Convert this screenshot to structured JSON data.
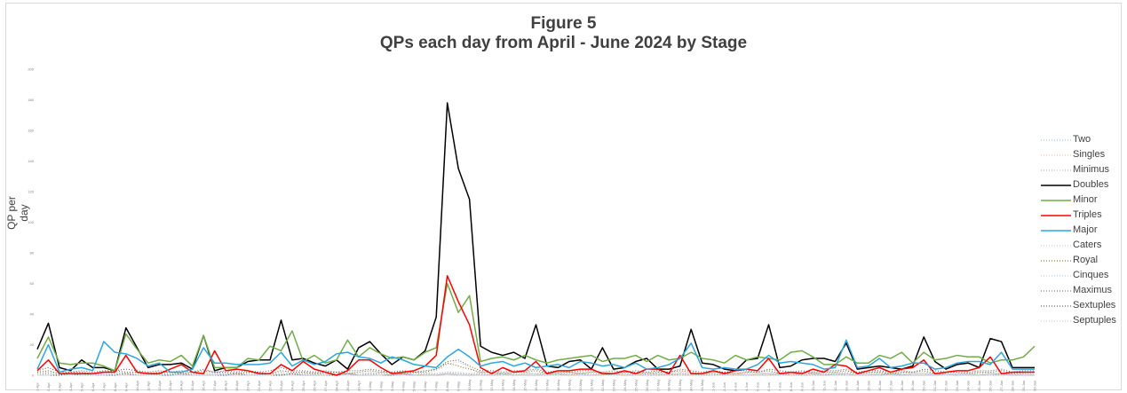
{
  "figure": {
    "title_line1": "Figure 5",
    "title_line2": "QPs each day from April - June 2024 by Stage"
  },
  "chart_data": {
    "type": "line",
    "title": "Figure 5 QPs each day from April - June 2024 by Stage",
    "xlabel": "",
    "ylabel": "QP per day",
    "ylim": [
      0,
      200
    ],
    "y_ticks": [
      0,
      20,
      40,
      60,
      80,
      100,
      120,
      140,
      160,
      180,
      200
    ],
    "grid": false,
    "legend_position": "right",
    "categories": [
      "1-Apr",
      "2-Apr",
      "3-Apr",
      "4-Apr",
      "5-Apr",
      "6-Apr",
      "7-Apr",
      "8-Apr",
      "9-Apr",
      "10-Apr",
      "11-Apr",
      "12-Apr",
      "13-Apr",
      "14-Apr",
      "15-Apr",
      "16-Apr",
      "17-Apr",
      "18-Apr",
      "19-Apr",
      "20-Apr",
      "21-Apr",
      "22-Apr",
      "23-Apr",
      "24-Apr",
      "25-Apr",
      "26-Apr",
      "27-Apr",
      "28-Apr",
      "29-Apr",
      "30-Apr",
      "1-May",
      "2-May",
      "3-May",
      "4-May",
      "5-May",
      "6-May",
      "7-May",
      "8-May",
      "9-May",
      "10-May",
      "11-May",
      "12-May",
      "13-May",
      "14-May",
      "15-May",
      "16-May",
      "17-May",
      "18-May",
      "19-May",
      "20-May",
      "21-May",
      "22-May",
      "23-May",
      "24-May",
      "25-May",
      "26-May",
      "27-May",
      "28-May",
      "29-May",
      "30-May",
      "31-May",
      "1-Jun",
      "2-Jun",
      "3-Jun",
      "4-Jun",
      "5-Jun",
      "6-Jun",
      "7-Jun",
      "8-Jun",
      "9-Jun",
      "10-Jun",
      "11-Jun",
      "12-Jun",
      "13-Jun",
      "14-Jun",
      "15-Jun",
      "16-Jun",
      "17-Jun",
      "18-Jun",
      "19-Jun",
      "20-Jun",
      "21-Jun",
      "22-Jun",
      "23-Jun",
      "24-Jun",
      "25-Jun",
      "26-Jun",
      "27-Jun",
      "28-Jun",
      "29-Jun",
      "30-Jun"
    ],
    "series": [
      {
        "name": "Two",
        "color": "#8ab4e0",
        "dash": "1,2",
        "width": 1,
        "values": [
          1,
          1,
          0,
          1,
          0,
          1,
          0,
          1,
          1,
          0,
          1,
          0,
          1,
          0,
          1,
          0,
          1,
          1,
          0,
          1,
          0,
          1,
          0,
          1,
          1,
          0,
          1,
          0,
          1,
          0,
          1,
          1,
          0,
          1,
          0,
          1,
          0,
          1,
          1,
          0,
          1,
          0,
          1,
          0,
          1,
          1,
          0,
          1,
          0,
          1,
          0,
          1,
          1,
          0,
          1,
          0,
          1,
          0,
          1,
          1,
          0,
          1,
          0,
          1,
          0,
          1,
          1,
          0,
          1,
          0,
          1,
          0,
          1,
          1,
          0,
          1,
          0,
          1,
          0,
          1,
          1,
          0,
          1,
          0,
          1,
          0,
          1,
          1,
          0,
          1,
          0
        ]
      },
      {
        "name": "Singles",
        "color": "#f4b183",
        "dash": "1,2",
        "width": 1,
        "values": [
          0,
          1,
          0,
          0,
          1,
          0,
          0,
          1,
          0,
          0,
          1,
          0,
          0,
          1,
          0,
          0,
          1,
          0,
          0,
          1,
          0,
          0,
          1,
          0,
          0,
          1,
          0,
          0,
          1,
          0,
          0,
          1,
          0,
          0,
          1,
          0,
          0,
          1,
          0,
          0,
          1,
          0,
          0,
          1,
          0,
          0,
          1,
          0,
          0,
          1,
          0,
          0,
          1,
          0,
          0,
          1,
          0,
          0,
          1,
          0,
          0,
          1,
          0,
          0,
          1,
          0,
          0,
          1,
          0,
          0,
          1,
          0,
          0,
          1,
          0,
          0,
          1,
          0,
          0,
          1,
          0,
          0,
          1,
          0,
          0,
          1,
          0,
          0,
          1,
          0,
          0
        ]
      },
      {
        "name": "Minimus",
        "color": "#a6a6a6",
        "dash": "1,2",
        "width": 1,
        "values": [
          1,
          2,
          1,
          1,
          2,
          1,
          1,
          2,
          1,
          1,
          2,
          1,
          1,
          2,
          1,
          1,
          2,
          1,
          1,
          2,
          1,
          1,
          2,
          1,
          1,
          2,
          1,
          1,
          2,
          1,
          1,
          2,
          1,
          1,
          2,
          1,
          1,
          2,
          1,
          1,
          2,
          1,
          1,
          2,
          1,
          1,
          2,
          1,
          1,
          2,
          1,
          1,
          2,
          1,
          1,
          2,
          1,
          1,
          2,
          1,
          1,
          2,
          1,
          1,
          2,
          1,
          1,
          2,
          1,
          1,
          2,
          1,
          1,
          2,
          1,
          1,
          2,
          1,
          1,
          2,
          1,
          1,
          2,
          1,
          1,
          2,
          1,
          1,
          2,
          1,
          1
        ]
      },
      {
        "name": "Doubles",
        "color": "#000000",
        "dash": "",
        "width": 1.5,
        "values": [
          17,
          34,
          5,
          3,
          10,
          5,
          5,
          3,
          31,
          18,
          5,
          7,
          7,
          8,
          4,
          26,
          3,
          5,
          5,
          9,
          10,
          10,
          36,
          10,
          11,
          8,
          6,
          10,
          4,
          18,
          22,
          14,
          7,
          12,
          10,
          16,
          38,
          178,
          135,
          115,
          19,
          15,
          13,
          15,
          11,
          33,
          6,
          5,
          9,
          10,
          4,
          18,
          4,
          5,
          9,
          11,
          4,
          4,
          6,
          30,
          8,
          7,
          4,
          3,
          10,
          11,
          33,
          5,
          6,
          10,
          11,
          11,
          9,
          21,
          4,
          5,
          6,
          5,
          4,
          6,
          25,
          9,
          4,
          7,
          8,
          5,
          24,
          22,
          5,
          5,
          5
        ]
      },
      {
        "name": "Minor",
        "color": "#70ad47",
        "dash": "",
        "width": 1.5,
        "values": [
          11,
          25,
          8,
          7,
          8,
          8,
          6,
          3,
          27,
          17,
          8,
          10,
          9,
          13,
          6,
          26,
          5,
          5,
          5,
          11,
          10,
          19,
          16,
          29,
          9,
          13,
          8,
          10,
          23,
          12,
          18,
          14,
          11,
          12,
          10,
          15,
          18,
          60,
          41,
          52,
          9,
          11,
          12,
          10,
          13,
          10,
          8,
          10,
          11,
          12,
          13,
          9,
          11,
          11,
          13,
          9,
          13,
          10,
          11,
          15,
          11,
          10,
          8,
          13,
          10,
          12,
          11,
          10,
          15,
          16,
          12,
          7,
          7,
          12,
          8,
          8,
          13,
          11,
          15,
          8,
          15,
          10,
          11,
          13,
          12,
          12,
          8,
          10,
          10,
          12,
          19
        ]
      },
      {
        "name": "Triples",
        "color": "#ff0000",
        "dash": "",
        "width": 1.5,
        "values": [
          3,
          10,
          1,
          1,
          1,
          1,
          2,
          2,
          13,
          2,
          1,
          1,
          4,
          7,
          2,
          1,
          16,
          3,
          4,
          3,
          1,
          1,
          7,
          3,
          9,
          4,
          2,
          0,
          3,
          10,
          10,
          5,
          1,
          2,
          3,
          6,
          13,
          65,
          48,
          33,
          5,
          1,
          5,
          2,
          3,
          9,
          1,
          3,
          3,
          4,
          4,
          1,
          1,
          3,
          1,
          4,
          4,
          1,
          13,
          1,
          1,
          3,
          1,
          3,
          4,
          3,
          11,
          1,
          2,
          1,
          4,
          2,
          7,
          6,
          1,
          3,
          5,
          2,
          4,
          5,
          10,
          1,
          2,
          3,
          3,
          5,
          12,
          1,
          2,
          2,
          2
        ]
      },
      {
        "name": "Major",
        "color": "#2aa7e0",
        "dash": "",
        "width": 1.5,
        "values": [
          4,
          20,
          2,
          4,
          5,
          3,
          22,
          15,
          14,
          11,
          6,
          8,
          2,
          2,
          4,
          18,
          8,
          8,
          7,
          7,
          7,
          8,
          15,
          6,
          10,
          7,
          9,
          14,
          15,
          12,
          11,
          8,
          12,
          10,
          7,
          6,
          5,
          12,
          17,
          12,
          6,
          8,
          9,
          6,
          8,
          5,
          6,
          7,
          5,
          9,
          8,
          6,
          7,
          5,
          8,
          4,
          5,
          7,
          11,
          21,
          5,
          4,
          5,
          4,
          4,
          7,
          13,
          8,
          9,
          8,
          7,
          4,
          5,
          23,
          5,
          6,
          11,
          5,
          6,
          8,
          8,
          4,
          5,
          8,
          9,
          9,
          7,
          15,
          4,
          4,
          4
        ]
      },
      {
        "name": "Caters",
        "color": "#bfbfbf",
        "dash": "1,2",
        "width": 1,
        "values": [
          1,
          2,
          1,
          1,
          2,
          1,
          2,
          1,
          2,
          1,
          1,
          2,
          1,
          1,
          2,
          1,
          2,
          1,
          1,
          2,
          1,
          1,
          2,
          1,
          2,
          1,
          1,
          2,
          1,
          1,
          2,
          1,
          1,
          2,
          1,
          1,
          3,
          7,
          9,
          5,
          1,
          2,
          1,
          1,
          2,
          1,
          1,
          2,
          1,
          1,
          2,
          1,
          1,
          2,
          1,
          1,
          2,
          1,
          2,
          1,
          1,
          2,
          1,
          1,
          2,
          1,
          2,
          1,
          1,
          2,
          1,
          1,
          2,
          1,
          1,
          2,
          1,
          1,
          2,
          1,
          2,
          1,
          1,
          2,
          1,
          1,
          2,
          1,
          1,
          2,
          1
        ]
      },
      {
        "name": "Royal",
        "color": "#7f6000",
        "dash": "1,2",
        "width": 1,
        "values": [
          2,
          3,
          1,
          2,
          2,
          1,
          2,
          3,
          2,
          2,
          1,
          2,
          2,
          1,
          2,
          3,
          2,
          2,
          1,
          2,
          2,
          1,
          3,
          2,
          2,
          1,
          2,
          2,
          1,
          2,
          3,
          2,
          2,
          1,
          2,
          2,
          4,
          8,
          6,
          4,
          2,
          2,
          1,
          2,
          2,
          3,
          1,
          2,
          2,
          1,
          2,
          2,
          1,
          2,
          2,
          1,
          2,
          2,
          3,
          2,
          1,
          2,
          2,
          1,
          2,
          2,
          3,
          1,
          2,
          2,
          1,
          2,
          2,
          3,
          1,
          2,
          2,
          1,
          2,
          2,
          3,
          1,
          2,
          2,
          1,
          2,
          2,
          3,
          1,
          2,
          2
        ]
      },
      {
        "name": "Cinques",
        "color": "#9dc3e6",
        "dash": "1,2",
        "width": 1,
        "values": [
          0,
          1,
          0,
          1,
          0,
          0,
          1,
          0,
          1,
          0,
          0,
          1,
          0,
          1,
          0,
          0,
          1,
          0,
          1,
          0,
          0,
          1,
          0,
          1,
          0,
          0,
          1,
          0,
          1,
          0,
          0,
          1,
          0,
          1,
          0,
          0,
          1,
          2,
          2,
          1,
          0,
          1,
          0,
          1,
          0,
          0,
          1,
          0,
          1,
          0,
          0,
          1,
          0,
          1,
          0,
          0,
          1,
          0,
          1,
          0,
          0,
          1,
          0,
          1,
          0,
          0,
          1,
          0,
          1,
          0,
          0,
          1,
          0,
          1,
          0,
          0,
          1,
          0,
          1,
          0,
          0,
          1,
          0,
          1,
          0,
          0,
          1,
          0,
          1,
          0,
          0
        ]
      },
      {
        "name": "Maximus",
        "color": "#595959",
        "dash": "1,2",
        "width": 1,
        "values": [
          3,
          5,
          2,
          2,
          3,
          2,
          3,
          3,
          4,
          3,
          2,
          3,
          2,
          3,
          2,
          4,
          2,
          3,
          2,
          3,
          2,
          3,
          5,
          3,
          3,
          2,
          3,
          2,
          3,
          3,
          4,
          3,
          2,
          3,
          2,
          3,
          4,
          9,
          10,
          6,
          3,
          3,
          2,
          3,
          3,
          4,
          2,
          3,
          2,
          3,
          3,
          2,
          3,
          2,
          3,
          2,
          3,
          2,
          4,
          3,
          2,
          3,
          2,
          3,
          3,
          2,
          4,
          3,
          2,
          3,
          2,
          3,
          3,
          4,
          2,
          3,
          3,
          2,
          3,
          2,
          4,
          3,
          2,
          3,
          2,
          3,
          3,
          4,
          2,
          3,
          3
        ]
      },
      {
        "name": "Sextuples",
        "color": "#404040",
        "dash": "1,2",
        "width": 1,
        "values": [
          0,
          0,
          0,
          1,
          0,
          0,
          0,
          0,
          1,
          0,
          0,
          0,
          0,
          1,
          0,
          0,
          0,
          0,
          1,
          0,
          0,
          0,
          0,
          1,
          0,
          0,
          0,
          0,
          1,
          0,
          0,
          0,
          0,
          1,
          0,
          0,
          0,
          1,
          0,
          0,
          0,
          0,
          1,
          0,
          0,
          0,
          0,
          1,
          0,
          0,
          0,
          0,
          1,
          0,
          0,
          0,
          0,
          1,
          0,
          0,
          0,
          0,
          1,
          0,
          0,
          0,
          0,
          1,
          0,
          0,
          0,
          0,
          1,
          0,
          0,
          0,
          0,
          1,
          0,
          0,
          0,
          0,
          1,
          0,
          0,
          0,
          0,
          1,
          0,
          0,
          0
        ]
      },
      {
        "name": "Septuples",
        "color": "#c9c9c9",
        "dash": "1,2",
        "width": 1,
        "values": [
          0,
          0,
          1,
          0,
          0,
          0,
          0,
          1,
          0,
          0,
          0,
          0,
          1,
          0,
          0,
          0,
          0,
          1,
          0,
          0,
          0,
          0,
          1,
          0,
          0,
          0,
          0,
          1,
          0,
          0,
          0,
          0,
          1,
          0,
          0,
          0,
          0,
          1,
          0,
          0,
          0,
          0,
          1,
          0,
          0,
          0,
          0,
          1,
          0,
          0,
          0,
          0,
          1,
          0,
          0,
          0,
          0,
          1,
          0,
          0,
          0,
          0,
          1,
          0,
          0,
          0,
          0,
          1,
          0,
          0,
          0,
          0,
          1,
          0,
          0,
          0,
          0,
          1,
          0,
          0,
          0,
          0,
          1,
          0,
          0,
          0,
          0,
          1,
          0,
          0,
          0
        ]
      }
    ]
  }
}
